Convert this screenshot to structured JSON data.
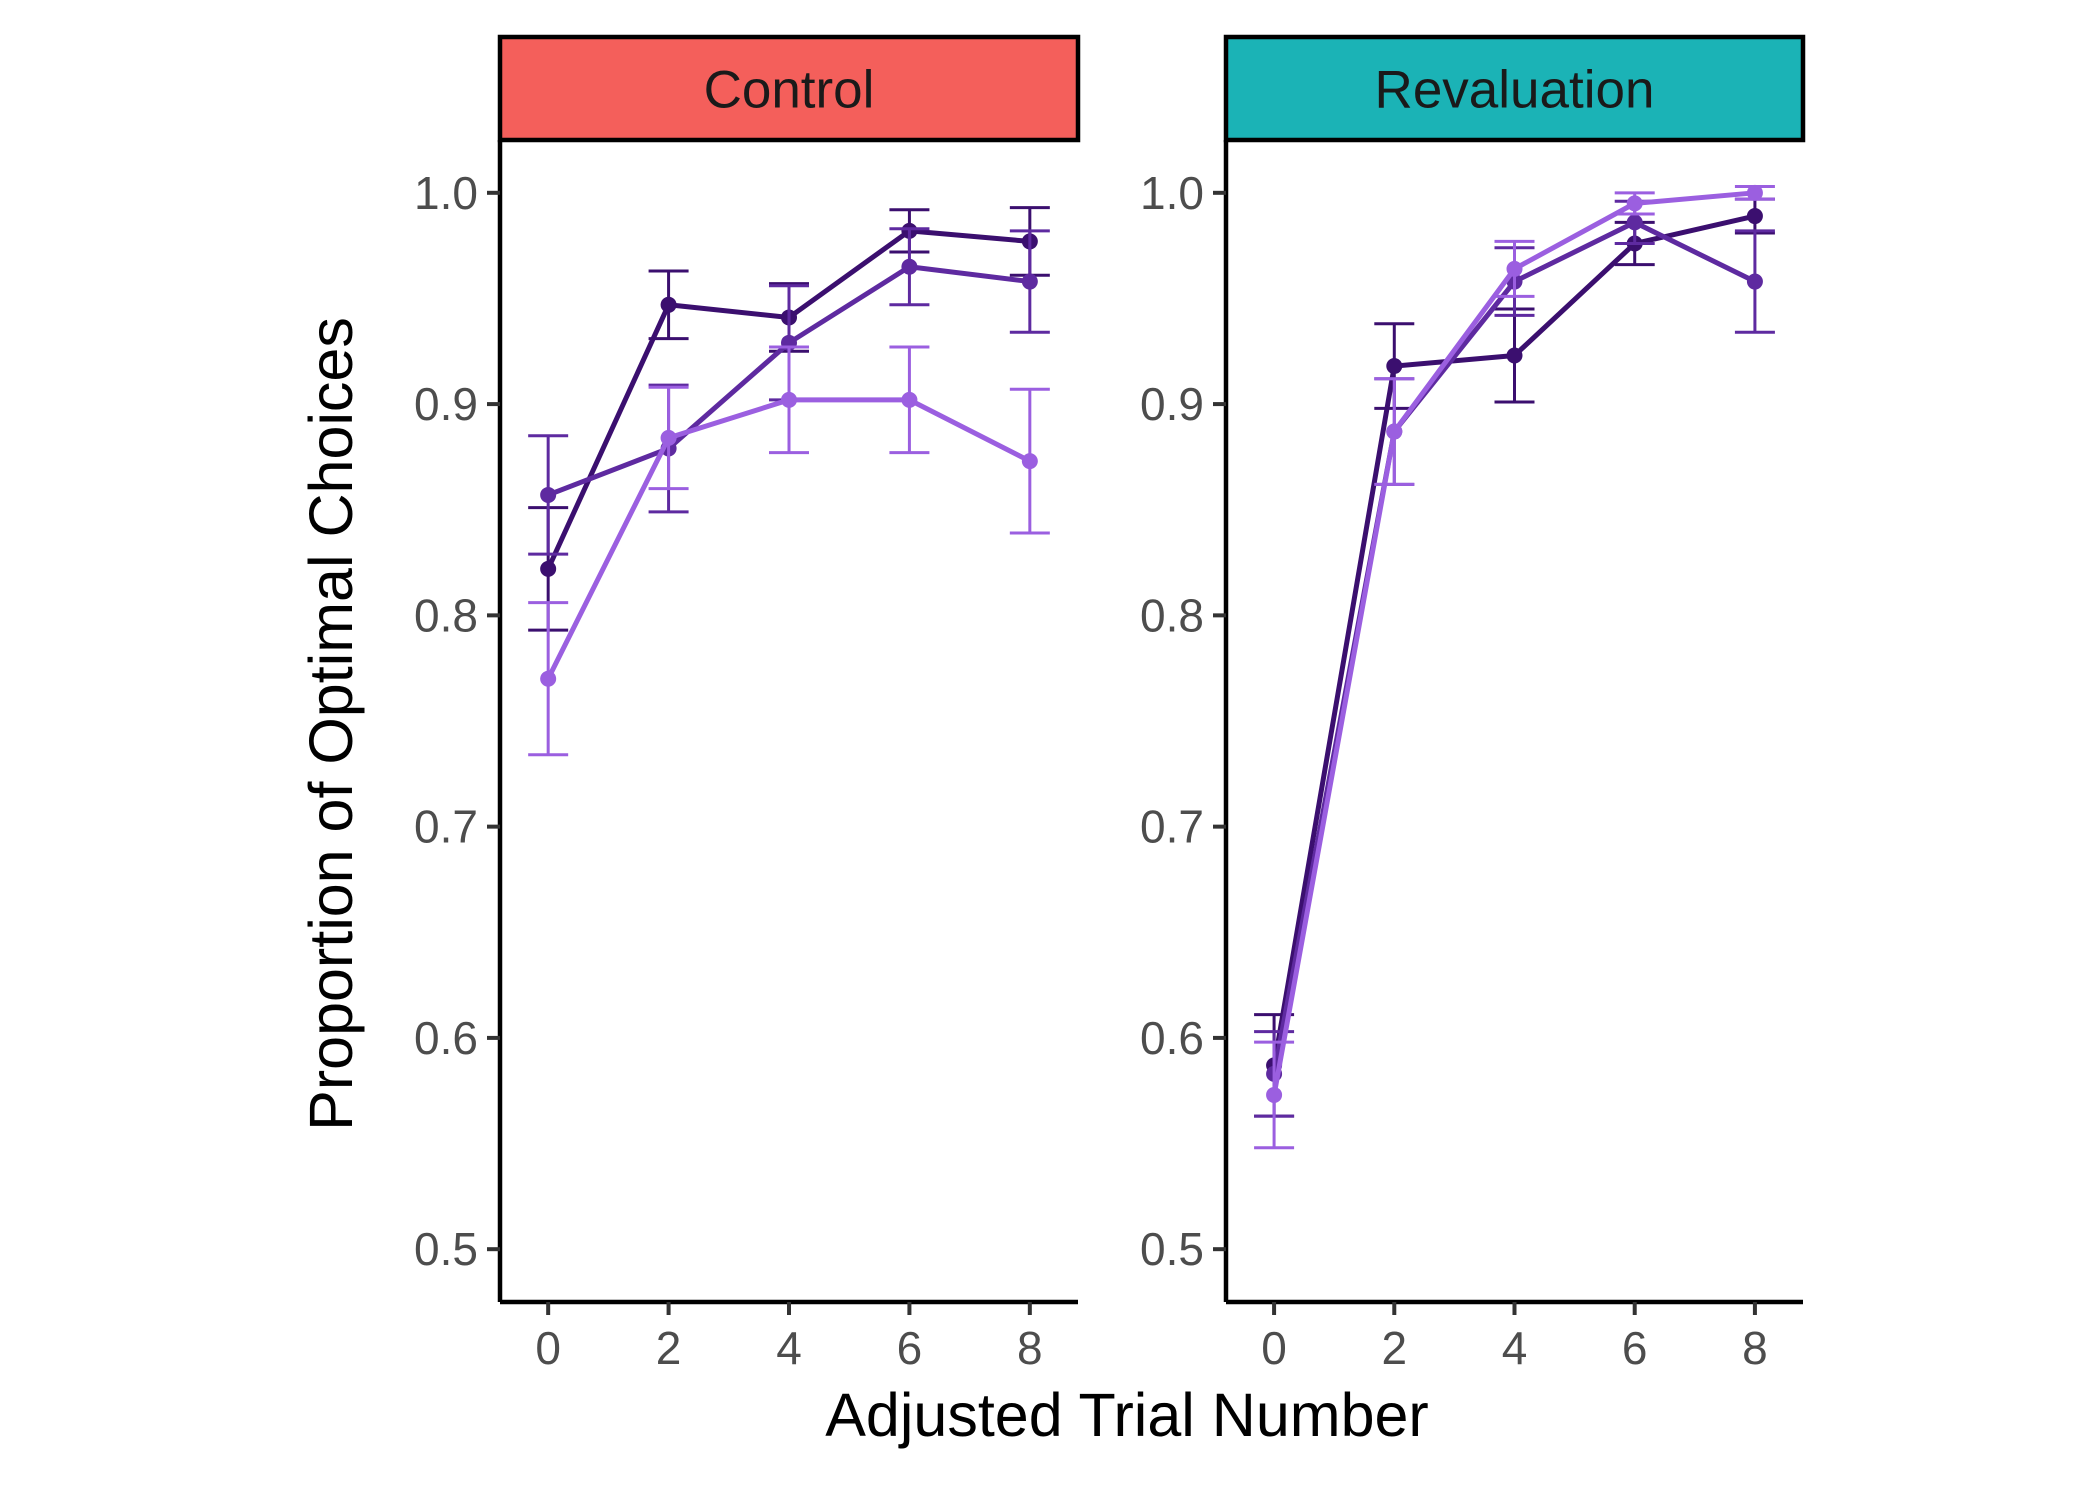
{
  "chart_data": {
    "type": "line",
    "xlabel": "Adjusted Trial Number",
    "ylabel": "Proportion of Optimal Choices",
    "x_ticks": [
      0,
      2,
      4,
      6,
      8
    ],
    "y_ticks": [
      0.5,
      0.6,
      0.7,
      0.8,
      0.9,
      1.0
    ],
    "y_tick_labels": [
      "0.5",
      "0.6",
      "0.7",
      "0.8",
      "0.9",
      "1.0"
    ],
    "xlim": [
      -0.8,
      8.8
    ],
    "ylim": [
      0.475,
      1.025
    ],
    "grid": false,
    "legend": "none",
    "series_colors": [
      "#3b0f6f",
      "#5e2aa0",
      "#9b5fe0"
    ],
    "panels": [
      {
        "label": "Control",
        "strip_color": "#f45f5b",
        "series": [
          {
            "x": [
              0,
              2,
              4,
              6,
              8
            ],
            "y": [
              0.822,
              0.947,
              0.941,
              0.982,
              0.977
            ],
            "err": [
              0.029,
              0.016,
              0.016,
              0.01,
              0.016
            ]
          },
          {
            "x": [
              0,
              2,
              4,
              6,
              8
            ],
            "y": [
              0.857,
              0.879,
              0.929,
              0.965,
              0.958
            ],
            "err": [
              0.028,
              0.03,
              0.027,
              0.018,
              0.024
            ]
          },
          {
            "x": [
              0,
              2,
              4,
              6,
              8
            ],
            "y": [
              0.77,
              0.884,
              0.902,
              0.902,
              0.873
            ],
            "err": [
              0.036,
              0.024,
              0.025,
              0.025,
              0.034
            ]
          }
        ]
      },
      {
        "label": "Revaluation",
        "strip_color": "#1bb3b6",
        "series": [
          {
            "x": [
              0,
              2,
              4,
              6,
              8
            ],
            "y": [
              0.587,
              0.918,
              0.923,
              0.976,
              0.989
            ],
            "err": [
              0.024,
              0.02,
              0.022,
              0.01,
              0.008
            ]
          },
          {
            "x": [
              0,
              2,
              4,
              6,
              8
            ],
            "y": [
              0.583,
              0.887,
              0.958,
              0.986,
              0.958
            ],
            "err": [
              0.02,
              0.025,
              0.016,
              0.01,
              0.024
            ]
          },
          {
            "x": [
              0,
              2,
              4,
              6,
              8
            ],
            "y": [
              0.573,
              0.887,
              0.964,
              0.995,
              1.0
            ],
            "err": [
              0.025,
              0.025,
              0.013,
              0.005,
              0.003
            ]
          }
        ]
      }
    ]
  }
}
